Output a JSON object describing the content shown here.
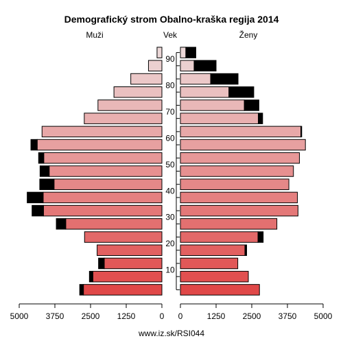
{
  "chart_data": {
    "type": "bar",
    "orientation": "horizontal-pyramid",
    "title": "Demografický strom Obalno-kraška regija 2014",
    "left_label": "Muži",
    "center_label": "Vek",
    "right_label": "Ženy",
    "footer": "www.iz.sk/RSI044",
    "x_range": [
      0,
      5000
    ],
    "x_ticks": [
      "5000",
      "3750",
      "2500",
      "1250",
      "0",
      "0",
      "1250",
      "2500",
      "3750",
      "5000"
    ],
    "age_ticks": [
      "10",
      "20",
      "30",
      "40",
      "50",
      "60",
      "70",
      "80",
      "90"
    ],
    "age_groups": [
      "0-4",
      "5-9",
      "10-14",
      "15-19",
      "20-24",
      "25-29",
      "30-34",
      "35-39",
      "40-44",
      "45-49",
      "50-54",
      "55-59",
      "60-64",
      "65-69",
      "70-74",
      "75-79",
      "80-84",
      "85-89",
      "90+"
    ],
    "series": [
      {
        "name": "Muži",
        "values": [
          2750,
          2420,
          2020,
          2270,
          2710,
          3370,
          4150,
          4160,
          3780,
          3950,
          4140,
          4370,
          4200,
          2720,
          2240,
          1680,
          1090,
          470,
          170
        ],
        "excess": [
          130,
          120,
          200,
          0,
          0,
          330,
          400,
          560,
          500,
          320,
          180,
          220,
          0,
          0,
          0,
          0,
          0,
          0,
          0
        ]
      },
      {
        "name": "Ženy",
        "values": [
          2770,
          2380,
          2010,
          2260,
          2720,
          3380,
          4120,
          4100,
          3800,
          3960,
          4170,
          4380,
          4220,
          2730,
          2240,
          1700,
          1060,
          480,
          190
        ],
        "excess": [
          0,
          0,
          0,
          60,
          180,
          0,
          0,
          0,
          0,
          0,
          0,
          0,
          30,
          150,
          510,
          870,
          960,
          770,
          350
        ]
      }
    ],
    "colors": {
      "young": "#e04848",
      "old": "#ecd8d8",
      "excess": "#000000"
    }
  }
}
